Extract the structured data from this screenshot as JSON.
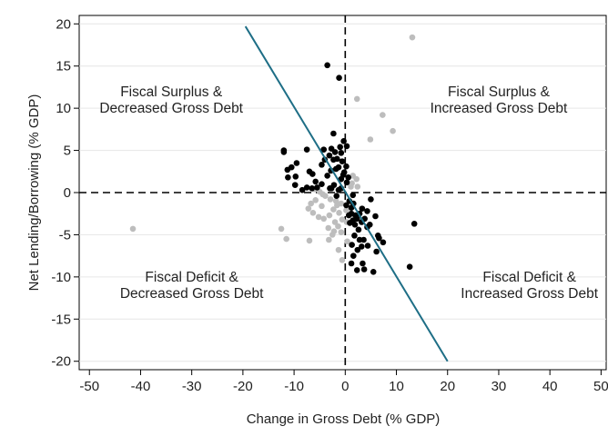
{
  "chart_data": {
    "type": "scatter",
    "title": "",
    "xlabel": "Change in Gross Debt (% GDP)",
    "ylabel": "Net Lending/Borrowing (% GDP)",
    "xlim": [
      -52,
      51
    ],
    "ylim": [
      -21,
      21
    ],
    "xticks": [
      -50,
      -40,
      -30,
      -20,
      -10,
      0,
      10,
      20,
      30,
      40,
      50
    ],
    "yticks": [
      -20,
      -15,
      -10,
      -5,
      0,
      5,
      10,
      15,
      20
    ],
    "xtick_labels": [
      "-50",
      "-40",
      "-30",
      "-20",
      "-10",
      "0",
      "10",
      "20",
      "30",
      "40",
      "50"
    ],
    "ytick_labels": [
      "-20",
      "-15",
      "-10",
      "-5",
      "0",
      "5",
      "10",
      "15",
      "20"
    ],
    "grid": "horizontal",
    "legend": "none",
    "colors": {
      "black_series": "#000000",
      "grey_series": "#bdbdbd",
      "fit_line": "#1e6e86",
      "ref_lines": "#000000"
    },
    "quadrant_labels": [
      {
        "lines": [
          "Fiscal Surplus &",
          "Decreased Gross Debt"
        ],
        "x": -34,
        "y": 11
      },
      {
        "lines": [
          "Fiscal Surplus &",
          "Increased Gross Debt"
        ],
        "x": 30,
        "y": 11
      },
      {
        "lines": [
          "Fiscal Deficit &",
          "Decreased Gross Debt"
        ],
        "x": -30,
        "y": -11
      },
      {
        "lines": [
          "Fiscal Deficit &",
          "Increased Gross Debt"
        ],
        "x": 36,
        "y": -11
      }
    ],
    "line": {
      "x": [
        -19.5,
        20
      ],
      "y": [
        19.7,
        -20
      ]
    },
    "series": [
      {
        "color": "#000000",
        "points": [
          [
            -3.5,
            15.1
          ],
          [
            -1.2,
            13.6
          ],
          [
            -12,
            5
          ],
          [
            -12,
            4.8
          ],
          [
            -7.5,
            5.1
          ],
          [
            -11.3,
            2.7
          ],
          [
            -10.5,
            3
          ],
          [
            -9.5,
            3.5
          ],
          [
            -11.2,
            1.8
          ],
          [
            -9.7,
            1.9
          ],
          [
            -7,
            2.5
          ],
          [
            -6.4,
            2.2
          ],
          [
            -6.5,
            0.5
          ],
          [
            -5.5,
            0.6
          ],
          [
            -5.8,
            1.3
          ],
          [
            -9.8,
            0.9
          ],
          [
            -7.5,
            0.6
          ],
          [
            -4.2,
            5.1
          ],
          [
            -4,
            3.9
          ],
          [
            -4.6,
            3.3
          ],
          [
            -3.1,
            4.4
          ],
          [
            -2.3,
            7
          ],
          [
            -2.7,
            5.2
          ],
          [
            -2,
            4.8
          ],
          [
            -2.3,
            3.9
          ],
          [
            -1.6,
            4
          ],
          [
            -1.3,
            3
          ],
          [
            -1.8,
            2.8
          ],
          [
            -3.5,
            2
          ],
          [
            -2.8,
            2.6
          ],
          [
            -1,
            5.4
          ],
          [
            -0.8,
            4.7
          ],
          [
            -0.3,
            6.1
          ],
          [
            0.3,
            5.5
          ],
          [
            -0.6,
            3.7
          ],
          [
            -0.4,
            2.1
          ],
          [
            -0.2,
            2.4
          ],
          [
            -0.8,
            1.6
          ],
          [
            0.2,
            3.1
          ],
          [
            -4.6,
            1
          ],
          [
            -3,
            0.5
          ],
          [
            -2.2,
            0.9
          ],
          [
            -2.7,
            0.5
          ],
          [
            -1.3,
            0.3
          ],
          [
            -1.7,
            -0.4
          ],
          [
            -0.8,
            0.5
          ],
          [
            0.6,
            1.8
          ],
          [
            0.3,
            1.2
          ],
          [
            -8.4,
            0.3
          ],
          [
            0.8,
            -1
          ],
          [
            1.2,
            -1.8
          ],
          [
            1.6,
            -1.3
          ],
          [
            0.7,
            -2.7
          ],
          [
            1.2,
            -2.5
          ],
          [
            2,
            -2.7
          ],
          [
            2.8,
            -2.5
          ],
          [
            1.5,
            -3.3
          ],
          [
            0.9,
            -3.6
          ],
          [
            1.9,
            -3.8
          ],
          [
            2.3,
            -3.1
          ],
          [
            3.2,
            -3.5
          ],
          [
            3.8,
            -3.1
          ],
          [
            4.3,
            -2.2
          ],
          [
            3.3,
            -1.9
          ],
          [
            4.3,
            -4.1
          ],
          [
            4.8,
            -3.8
          ],
          [
            2.6,
            -4.4
          ],
          [
            1.8,
            -5.1
          ],
          [
            2.8,
            -5.6
          ],
          [
            3.6,
            -5.6
          ],
          [
            1.3,
            -6.2
          ],
          [
            2.4,
            -6.8
          ],
          [
            3.2,
            -6.4
          ],
          [
            4.4,
            -6.3
          ],
          [
            2.3,
            -9.2
          ],
          [
            3.4,
            -8.4
          ],
          [
            1.6,
            -7.5
          ],
          [
            1.2,
            -8.4
          ],
          [
            3.7,
            -9.1
          ],
          [
            5.5,
            -9.4
          ],
          [
            6.4,
            -5.1
          ],
          [
            6.6,
            -5.4
          ],
          [
            7.4,
            -5.9
          ],
          [
            6.1,
            -7
          ],
          [
            5.9,
            -2.8
          ],
          [
            12.6,
            -8.8
          ],
          [
            13.5,
            -3.7
          ],
          [
            5,
            -0.8
          ],
          [
            1.5,
            -0.3
          ],
          [
            0.2,
            -1.5
          ]
        ]
      },
      {
        "color": "#bdbdbd",
        "points": [
          [
            -41.5,
            -4.3
          ],
          [
            13.1,
            18.4
          ],
          [
            2.3,
            11.1
          ],
          [
            7.3,
            9.2
          ],
          [
            9.3,
            7.3
          ],
          [
            4.9,
            6.3
          ],
          [
            -12.5,
            -4.3
          ],
          [
            -11.5,
            -5.5
          ],
          [
            -7,
            -5.7
          ],
          [
            -3.2,
            -5.6
          ],
          [
            -1.3,
            -6.8
          ],
          [
            -0.6,
            -8
          ],
          [
            0.4,
            -5.8
          ],
          [
            -2.2,
            -4.6
          ],
          [
            -4.2,
            -3.1
          ],
          [
            -5.2,
            -2.9
          ],
          [
            -6.3,
            -2.4
          ],
          [
            -4.6,
            -1.6
          ],
          [
            -3.1,
            -2.7
          ],
          [
            -2.3,
            -2
          ],
          [
            -1.6,
            -1.5
          ],
          [
            -2.9,
            -0.8
          ],
          [
            -1.2,
            -2.4
          ],
          [
            -0.6,
            -3.2
          ],
          [
            -1.4,
            -4
          ],
          [
            -0.8,
            -4.7
          ],
          [
            0.3,
            -3.5
          ],
          [
            -3.9,
            -0.4
          ],
          [
            -5.8,
            -0.9
          ],
          [
            -6.7,
            -1.3
          ],
          [
            -7.2,
            -1.9
          ],
          [
            -2,
            -3.5
          ],
          [
            -1.8,
            -1
          ],
          [
            -0.8,
            -1.3
          ],
          [
            0.2,
            -2.1
          ],
          [
            -4.4,
            -0.2
          ],
          [
            -3.3,
            -4.2
          ],
          [
            -2.5,
            -5
          ],
          [
            1.5,
            2
          ],
          [
            1.3,
            1.1
          ],
          [
            2.2,
            1.6
          ],
          [
            1.1,
            0.7
          ],
          [
            2.4,
            0.7
          ],
          [
            -5,
            0.1
          ],
          [
            -6,
            0.4
          ]
        ]
      }
    ]
  }
}
